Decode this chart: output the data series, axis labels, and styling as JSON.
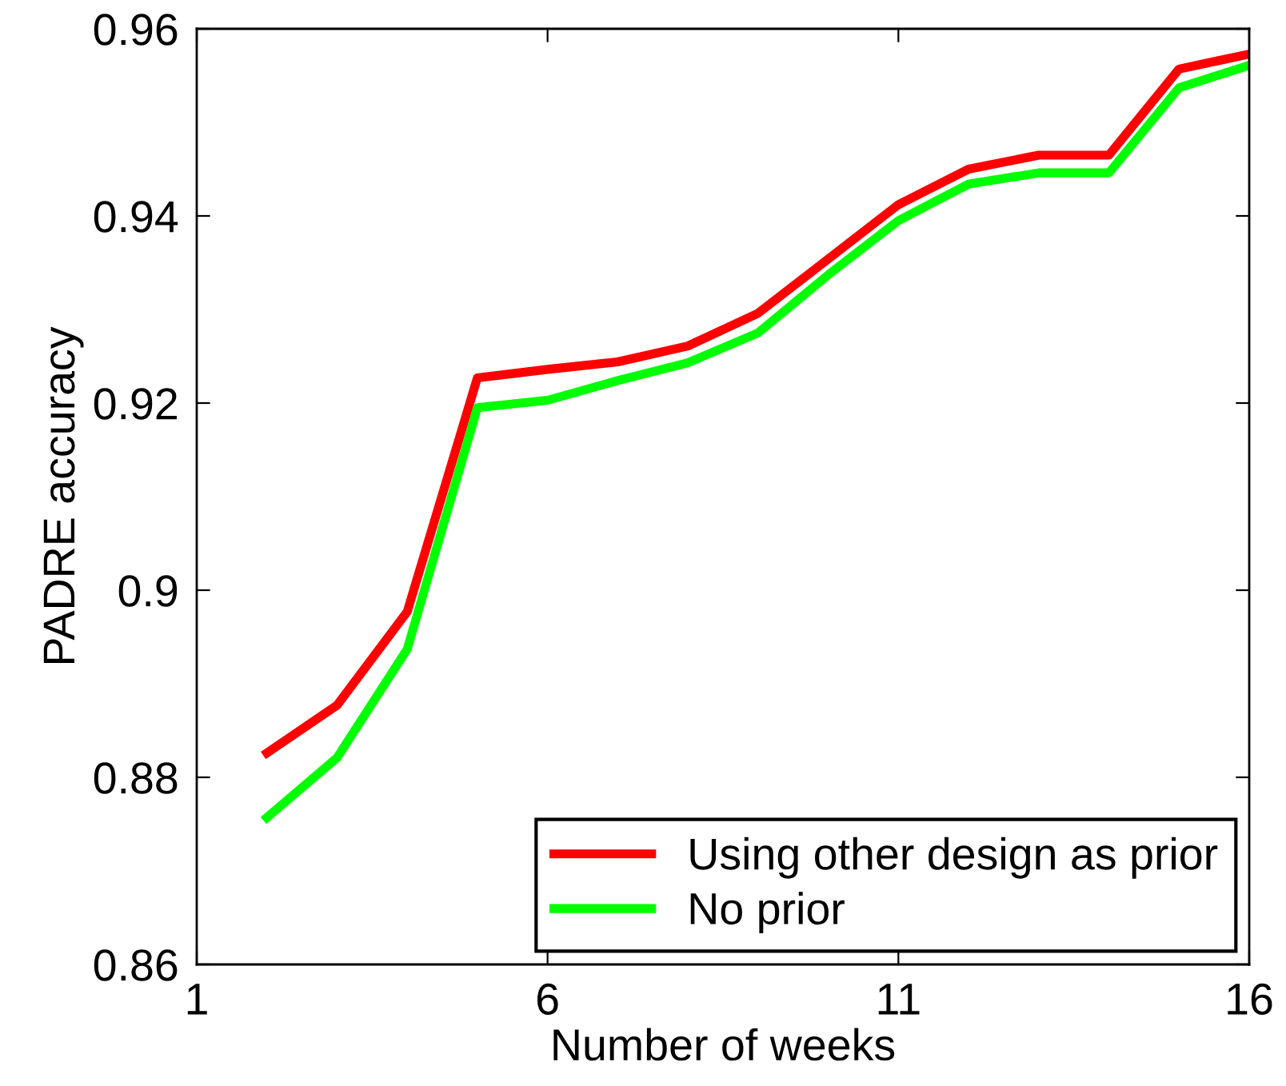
{
  "chart_data": {
    "type": "line",
    "xlabel": "Number of weeks",
    "ylabel": "PADRE accuracy",
    "x": [
      2,
      3,
      4,
      5,
      6,
      7,
      8,
      9,
      10,
      11,
      12,
      13,
      14,
      15,
      16
    ],
    "series": [
      {
        "name": "Using other design as prior",
        "color": "#ff0000",
        "values": [
          0.8826,
          0.8877,
          0.8977,
          0.9227,
          0.9236,
          0.9244,
          0.9261,
          0.9296,
          0.9354,
          0.9412,
          0.945,
          0.9465,
          0.9465,
          0.9557,
          0.9573
        ]
      },
      {
        "name": "No prior",
        "color": "#00ff00",
        "values": [
          0.8757,
          0.8821,
          0.8937,
          0.9195,
          0.9203,
          0.9224,
          0.9243,
          0.9275,
          0.9337,
          0.9395,
          0.9434,
          0.9446,
          0.9446,
          0.9537,
          0.9561
        ]
      }
    ],
    "xlim": [
      1,
      16
    ],
    "xticks": [
      1,
      6,
      11,
      16
    ],
    "ylim": [
      0.86,
      0.96
    ],
    "yticks": [
      {
        "value": 0.86,
        "label": "0.86"
      },
      {
        "value": 0.88,
        "label": "0.88"
      },
      {
        "value": 0.9,
        "label": "0.9"
      },
      {
        "value": 0.92,
        "label": "0.92"
      },
      {
        "value": 0.94,
        "label": "0.94"
      },
      {
        "value": 0.96,
        "label": "0.96"
      }
    ],
    "legend": "bottom right",
    "grid": false,
    "marker": "none",
    "line_style": "solid"
  }
}
